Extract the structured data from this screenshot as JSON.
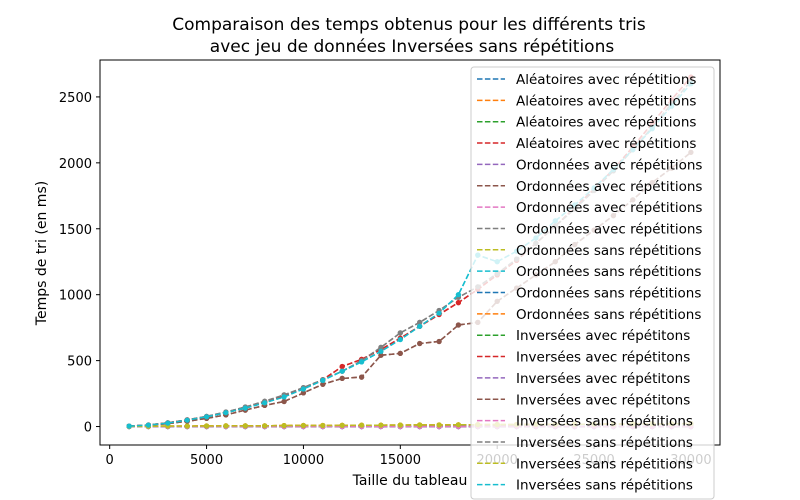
{
  "chart_data": {
    "type": "line",
    "title": "Comparaison des temps obtenus pour les différents tris\navec jeu de données Inversées sans répétitions",
    "xlabel": "Taille du tableau",
    "ylabel": "Temps de tri (en ms)",
    "xlim": [
      -500,
      31500
    ],
    "ylim": [
      -140,
      2780
    ],
    "xticks": [
      0,
      5000,
      10000,
      15000,
      20000,
      25000,
      30000
    ],
    "yticks": [
      0,
      500,
      1000,
      1500,
      2000,
      2500
    ],
    "grid": false,
    "legend_position": "upper-right",
    "line_style": "dashed",
    "marker": "circle",
    "x": [
      1000,
      2000,
      3000,
      4000,
      5000,
      6000,
      7000,
      8000,
      9000,
      10000,
      11000,
      12000,
      13000,
      14000,
      15000,
      16000,
      17000,
      18000,
      19000,
      20000,
      21000,
      22000,
      23000,
      24000,
      25000,
      26000,
      27000,
      28000,
      29000,
      30000
    ],
    "series": [
      {
        "name": "Aléatoires avec répétitions",
        "color": "#1f77b4",
        "values": [
          0,
          0,
          0,
          0,
          0,
          0,
          0,
          0,
          0,
          0,
          0,
          0,
          0,
          0,
          0,
          0,
          0,
          0,
          0,
          0,
          0,
          0,
          0,
          0,
          0,
          0,
          0,
          0,
          0,
          0
        ]
      },
      {
        "name": "Aléatoires avec répétitions",
        "color": "#ff7f0e",
        "values": [
          1,
          2,
          3,
          3,
          4,
          5,
          5,
          6,
          7,
          8,
          8,
          9,
          10,
          10,
          11,
          12,
          12,
          13,
          14,
          15,
          15,
          16,
          17,
          17,
          18,
          19,
          19,
          20,
          21,
          22
        ]
      },
      {
        "name": "Aléatoires avec répétitions",
        "color": "#2ca02c",
        "values": [
          0,
          0,
          0,
          0,
          0,
          0,
          0,
          0,
          0,
          0,
          0,
          0,
          0,
          0,
          0,
          0,
          0,
          0,
          0,
          0,
          0,
          0,
          0,
          0,
          0,
          0,
          0,
          0,
          0,
          0
        ]
      },
      {
        "name": "Aléatoires avec répétitions",
        "color": "#d62728",
        "values": [
          3,
          12,
          28,
          50,
          75,
          105,
          140,
          185,
          235,
          290,
          355,
          455,
          510,
          585,
          670,
          760,
          850,
          940,
          1040,
          1150,
          1260,
          1390,
          1520,
          1660,
          1800,
          1950,
          2120,
          2300,
          2480,
          2650
        ]
      },
      {
        "name": "Ordonnées avec répétitions",
        "color": "#9467bd",
        "values": [
          0,
          0,
          0,
          0,
          0,
          0,
          0,
          0,
          0,
          0,
          0,
          0,
          0,
          0,
          0,
          0,
          0,
          0,
          0,
          0,
          0,
          0,
          0,
          0,
          0,
          0,
          0,
          0,
          0,
          0
        ]
      },
      {
        "name": "Ordonnées avec répétitions",
        "color": "#8c564b",
        "values": [
          2,
          10,
          22,
          40,
          62,
          88,
          125,
          160,
          190,
          255,
          320,
          365,
          375,
          540,
          555,
          630,
          645,
          770,
          790,
          950,
          1050,
          1150,
          1250,
          1380,
          1490,
          1600,
          1720,
          1850,
          1960,
          2080
        ]
      },
      {
        "name": "Ordonnées avec répétitions",
        "color": "#e377c2",
        "values": [
          0,
          0,
          0,
          0,
          0,
          0,
          0,
          0,
          0,
          0,
          0,
          0,
          0,
          0,
          0,
          0,
          0,
          0,
          0,
          0,
          0,
          0,
          0,
          0,
          0,
          0,
          0,
          0,
          0,
          0
        ]
      },
      {
        "name": "Ordonnées avec répétitions",
        "color": "#7f7f7f",
        "values": [
          3,
          12,
          28,
          50,
          78,
          110,
          148,
          192,
          240,
          295,
          355,
          420,
          500,
          600,
          710,
          790,
          880,
          980,
          1060,
          1160,
          1270,
          1390,
          1520,
          1650,
          1790,
          1940,
          2100,
          2270,
          2450,
          2620
        ]
      },
      {
        "name": "Ordonnées sans répétitions",
        "color": "#bcbd22",
        "values": [
          1,
          2,
          3,
          3,
          4,
          5,
          5,
          6,
          7,
          8,
          8,
          9,
          10,
          10,
          11,
          12,
          12,
          13,
          14,
          15,
          15,
          16,
          17,
          17,
          18,
          19,
          19,
          20,
          21,
          22
        ]
      },
      {
        "name": "Ordonnées sans répétitions",
        "color": "#17becf",
        "values": [
          3,
          11,
          26,
          48,
          74,
          105,
          140,
          180,
          225,
          285,
          350,
          420,
          490,
          570,
          660,
          760,
          860,
          1000,
          1300,
          1250,
          1330,
          1430,
          1560,
          1680,
          1810,
          1950,
          2100,
          2260,
          2430,
          2600
        ]
      },
      {
        "name": "Ordonnées sans répétitions",
        "color": "#1f77b4",
        "values": [
          0,
          0,
          0,
          0,
          0,
          0,
          0,
          0,
          0,
          0,
          0,
          0,
          0,
          0,
          0,
          0,
          0,
          0,
          0,
          0,
          0,
          0,
          0,
          0,
          0,
          0,
          0,
          0,
          0,
          0
        ]
      },
      {
        "name": "Ordonnées sans répétitions",
        "color": "#ff7f0e",
        "values": [
          1,
          2,
          3,
          3,
          4,
          5,
          5,
          6,
          7,
          8,
          8,
          9,
          10,
          10,
          11,
          12,
          12,
          13,
          14,
          15,
          15,
          16,
          17,
          17,
          18,
          19,
          19,
          20,
          21,
          22
        ]
      },
      {
        "name": "Inversées avec répétitons",
        "color": "#2ca02c",
        "values": [
          0,
          0,
          0,
          0,
          0,
          0,
          0,
          0,
          0,
          0,
          0,
          0,
          0,
          0,
          0,
          0,
          0,
          0,
          0,
          0,
          0,
          0,
          0,
          0,
          0,
          0,
          0,
          0,
          0,
          0
        ]
      },
      {
        "name": "Inversées avec répétitons",
        "color": "#d62728",
        "values": [
          3,
          12,
          28,
          50,
          75,
          105,
          140,
          185,
          235,
          290,
          355,
          455,
          510,
          585,
          670,
          760,
          850,
          940,
          1040,
          1150,
          1260,
          1390,
          1520,
          1660,
          1800,
          1950,
          2120,
          2300,
          2480,
          2650
        ]
      },
      {
        "name": "Inversées avec répétitons",
        "color": "#9467bd",
        "values": [
          0,
          0,
          0,
          0,
          0,
          0,
          0,
          0,
          0,
          0,
          0,
          0,
          0,
          0,
          0,
          0,
          0,
          0,
          0,
          0,
          0,
          0,
          0,
          0,
          0,
          0,
          0,
          0,
          0,
          0
        ]
      },
      {
        "name": "Inversées avec répétitons",
        "color": "#8c564b",
        "values": [
          2,
          10,
          22,
          40,
          62,
          88,
          125,
          160,
          190,
          255,
          320,
          365,
          375,
          540,
          555,
          630,
          645,
          770,
          790,
          950,
          1050,
          1150,
          1250,
          1380,
          1490,
          1600,
          1720,
          1850,
          1960,
          2080
        ]
      },
      {
        "name": "Inversées sans répétitions",
        "color": "#e377c2",
        "values": [
          0,
          0,
          0,
          0,
          0,
          0,
          0,
          0,
          0,
          0,
          0,
          0,
          0,
          0,
          0,
          0,
          0,
          0,
          0,
          0,
          0,
          0,
          0,
          0,
          0,
          0,
          0,
          0,
          0,
          0
        ]
      },
      {
        "name": "Inversées sans répétitions",
        "color": "#7f7f7f",
        "values": [
          3,
          12,
          28,
          50,
          78,
          110,
          148,
          192,
          240,
          295,
          355,
          420,
          500,
          600,
          710,
          790,
          880,
          980,
          1060,
          1160,
          1270,
          1390,
          1520,
          1650,
          1790,
          1940,
          2100,
          2270,
          2450,
          2620
        ]
      },
      {
        "name": "Inversées sans répétitions",
        "color": "#bcbd22",
        "values": [
          1,
          2,
          3,
          3,
          4,
          5,
          5,
          6,
          7,
          8,
          8,
          9,
          10,
          10,
          11,
          12,
          12,
          13,
          14,
          15,
          15,
          16,
          17,
          17,
          18,
          19,
          19,
          20,
          21,
          22
        ]
      },
      {
        "name": "Inversées sans répétitions",
        "color": "#17becf",
        "values": [
          3,
          11,
          26,
          48,
          74,
          105,
          140,
          180,
          225,
          285,
          350,
          420,
          490,
          570,
          660,
          760,
          860,
          1000,
          1300,
          1250,
          1330,
          1430,
          1560,
          1680,
          1810,
          1950,
          2100,
          2260,
          2430,
          2600
        ]
      }
    ]
  }
}
